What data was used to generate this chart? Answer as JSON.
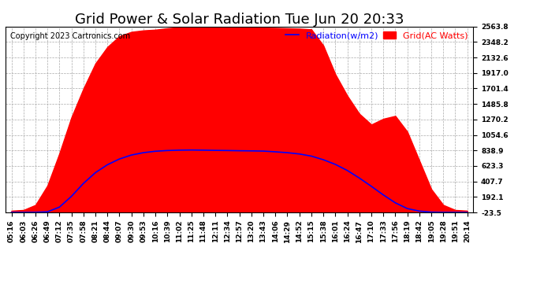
{
  "title": "Grid Power & Solar Radiation Tue Jun 20 20:33",
  "copyright": "Copyright 2023 Cartronics.com",
  "legend_radiation": "Radiation(w/m2)",
  "legend_grid": "Grid(AC Watts)",
  "yticks": [
    -23.5,
    192.1,
    407.7,
    623.3,
    838.9,
    1054.6,
    1270.2,
    1485.8,
    1701.4,
    1917.0,
    2132.6,
    2348.2,
    2563.8
  ],
  "ylim": [
    -23.5,
    2563.8
  ],
  "xtick_labels": [
    "05:16",
    "06:03",
    "06:26",
    "06:49",
    "07:12",
    "07:35",
    "07:58",
    "08:21",
    "08:44",
    "09:07",
    "09:30",
    "09:53",
    "10:16",
    "10:39",
    "11:02",
    "11:25",
    "11:48",
    "12:11",
    "12:34",
    "12:57",
    "13:20",
    "13:43",
    "14:06",
    "14:29",
    "14:52",
    "15:15",
    "15:38",
    "16:01",
    "16:24",
    "16:47",
    "17:10",
    "17:33",
    "17:56",
    "18:19",
    "18:42",
    "19:05",
    "19:28",
    "19:51",
    "20:14"
  ],
  "background_color": "#ffffff",
  "plot_bg_color": "#ffffff",
  "grid_color": "#aaaaaa",
  "red_fill_color": "#ff0000",
  "blue_line_color": "#0000ff",
  "title_fontsize": 13,
  "tick_fontsize": 6.5,
  "legend_fontsize": 8,
  "copyright_fontsize": 7,
  "grid_vals": [
    0,
    10,
    80,
    350,
    800,
    1300,
    1700,
    2050,
    2280,
    2430,
    2490,
    2510,
    2520,
    2540,
    2555,
    2558,
    2560,
    2558,
    2555,
    2553,
    2550,
    2548,
    2545,
    2540,
    2535,
    2525,
    2300,
    1900,
    1600,
    1350,
    1200,
    1280,
    1320,
    1100,
    700,
    300,
    80,
    10,
    0
  ],
  "radiation_vals": [
    -23.5,
    -23.5,
    -22,
    -15,
    50,
    200,
    380,
    530,
    640,
    720,
    775,
    808,
    828,
    838,
    843,
    845,
    843,
    840,
    838,
    835,
    833,
    830,
    820,
    808,
    790,
    760,
    710,
    645,
    560,
    455,
    340,
    220,
    110,
    30,
    -5,
    -20,
    -23,
    -23.5,
    -23.5
  ]
}
